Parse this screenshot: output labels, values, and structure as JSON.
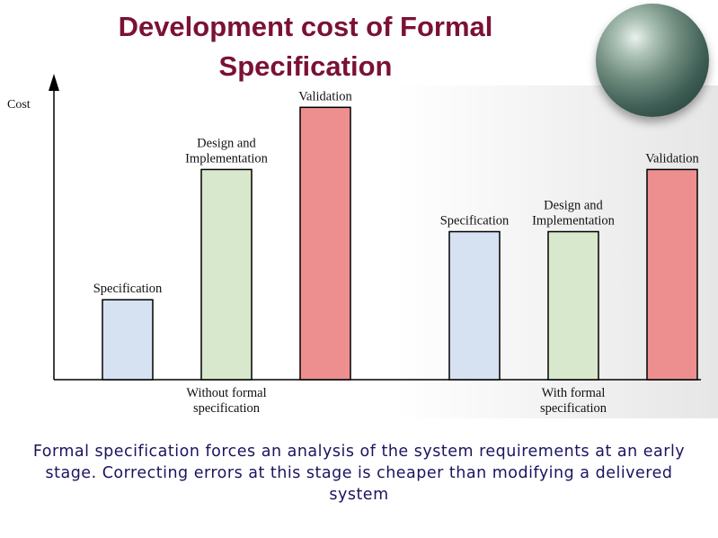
{
  "slide": {
    "title_line1": "Development cost of Formal",
    "title_line2": "Specification",
    "caption": "Formal specification forces an analysis of the system requirements at an early stage. Correcting errors at this stage is cheaper than modifying a delivered system"
  },
  "colors": {
    "specification": "#d6e2f2",
    "design": "#d8e8cc",
    "validation": "#ee8f8f",
    "title": "#7b1133",
    "caption": "#1a1460"
  },
  "chart_data": {
    "type": "bar",
    "ylabel": "Cost",
    "ylim": [
      0,
      100
    ],
    "grid": false,
    "groups": [
      {
        "name_line1": "Without formal",
        "name_line2": "specification",
        "bars": [
          {
            "label_lines": [
              "Specification"
            ],
            "value": 27,
            "color_key": "specification"
          },
          {
            "label_lines": [
              "Design and",
              "Implementation"
            ],
            "value": 71,
            "color_key": "design"
          },
          {
            "label_lines": [
              "Validation"
            ],
            "value": 92,
            "color_key": "validation"
          }
        ]
      },
      {
        "name_line1": "With formal",
        "name_line2": "specification",
        "bars": [
          {
            "label_lines": [
              "Specification"
            ],
            "value": 50,
            "color_key": "specification"
          },
          {
            "label_lines": [
              "Design and",
              "Implementation"
            ],
            "value": 50,
            "color_key": "design"
          },
          {
            "label_lines": [
              "Validation"
            ],
            "value": 71,
            "color_key": "validation"
          }
        ]
      }
    ]
  }
}
